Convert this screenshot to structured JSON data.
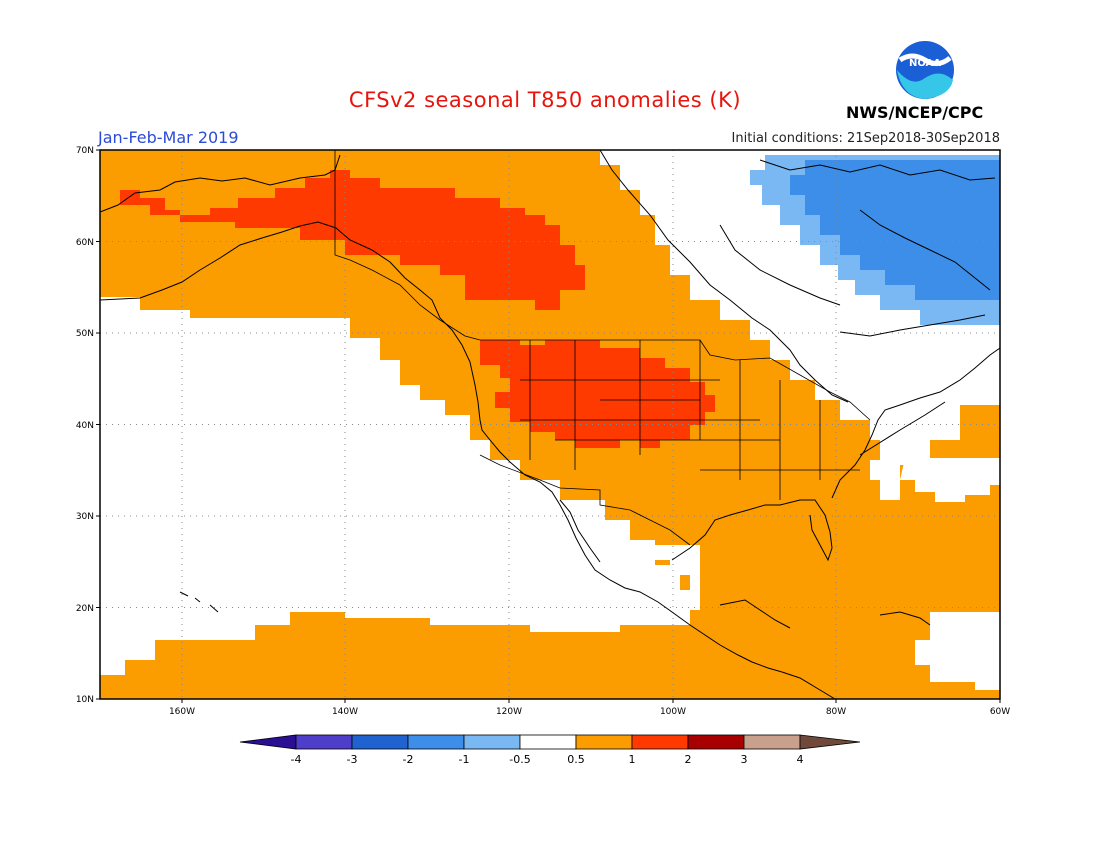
{
  "title": "CFSv2 seasonal T850 anomalies (K)",
  "agency": "NWS/NCEP/CPC",
  "logo_text": "NOAA",
  "season": "Jan-Feb-Mar 2019",
  "initial_conditions": "Initial conditions: 21Sep2018-30Sep2018",
  "map": {
    "lat_labels": [
      "70N",
      "60N",
      "50N",
      "40N",
      "30N",
      "20N",
      "10N"
    ],
    "lon_labels": [
      "160W",
      "140W",
      "120W",
      "100W",
      "80W",
      "60W"
    ],
    "lat_range": [
      10,
      70
    ],
    "lon_range": [
      -170,
      -60
    ]
  },
  "colorbar": {
    "labels": [
      "-4",
      "-3",
      "-2",
      "-1",
      "-0.5",
      "0.5",
      "1",
      "2",
      "3",
      "4"
    ],
    "colors": [
      "#2a0e94",
      "#4e3ec9",
      "#1f62d0",
      "#3c8ee8",
      "#7ab8f3",
      "#ffffff",
      "#fb9c00",
      "#ff3a00",
      "#a80000",
      "#c8a08c",
      "#70493a"
    ]
  }
}
